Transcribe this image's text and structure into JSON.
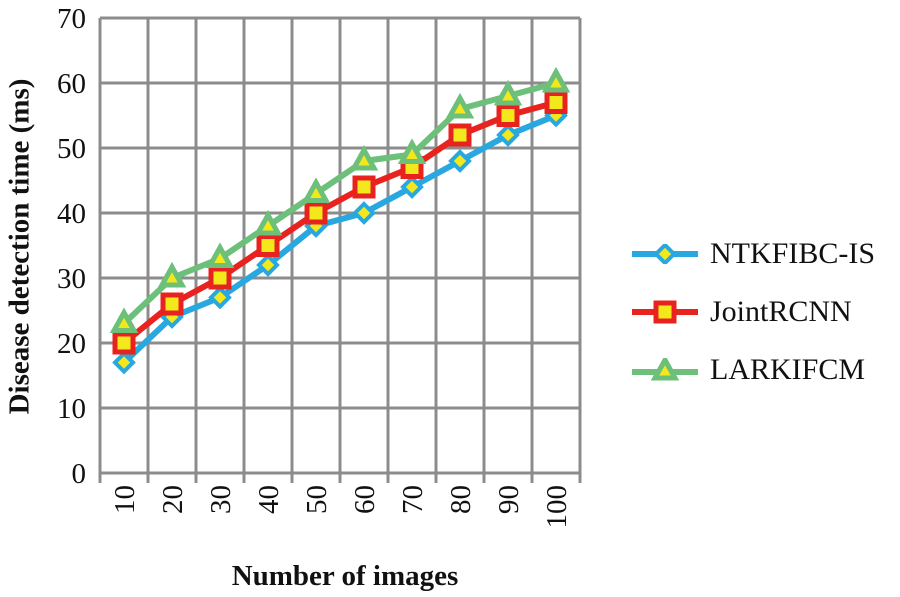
{
  "chart_data": {
    "type": "line",
    "title": "",
    "xlabel": "Number of images",
    "ylabel": "Disease detection time (ms)",
    "categories": [
      "10",
      "20",
      "30",
      "40",
      "50",
      "60",
      "70",
      "80",
      "90",
      "100"
    ],
    "ylim": [
      0,
      70
    ],
    "yticks": [
      0,
      10,
      20,
      30,
      40,
      50,
      60,
      70
    ],
    "grid": true,
    "legend_position": "right",
    "series": [
      {
        "name": "NTKFIBC-IS",
        "color": "#29a8e0",
        "marker": "diamond",
        "values": [
          17,
          24,
          27,
          32,
          38,
          40,
          44,
          48,
          52,
          55
        ]
      },
      {
        "name": "JointRCNN",
        "color": "#e8231f",
        "marker": "square",
        "values": [
          20,
          26,
          30,
          35,
          40,
          44,
          47,
          52,
          55,
          57
        ]
      },
      {
        "name": "LARKIFCM",
        "color": "#6cc07a",
        "marker": "triangle",
        "values": [
          23,
          30,
          33,
          38,
          43,
          48,
          49,
          56,
          58,
          60
        ]
      }
    ]
  }
}
